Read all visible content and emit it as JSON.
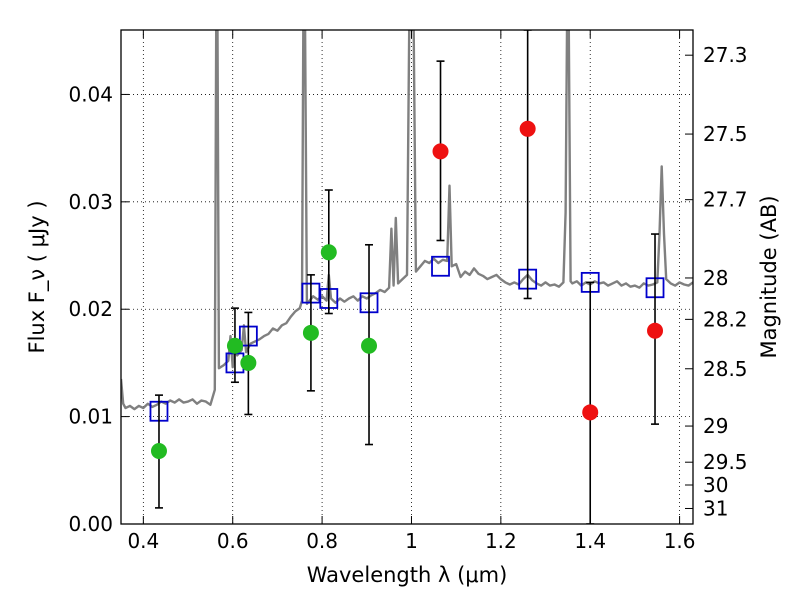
{
  "chart_data": {
    "type": "scatter",
    "xlabel": "Wavelength  λ (μm)",
    "ylabel": "Flux  F_ν  ( μJy )",
    "ylabel_right": "Magnitude (AB)",
    "xlim": [
      0.35,
      1.63
    ],
    "ylim": [
      0.0,
      0.046
    ],
    "grid": true,
    "x_ticks": [
      0.4,
      0.6,
      0.8,
      1.0,
      1.2,
      1.4,
      1.6
    ],
    "x_tick_labels": [
      "0.4",
      "0.6",
      "0.8",
      "1",
      "1.2",
      "1.4",
      "1.6"
    ],
    "y_ticks": [
      0.0,
      0.01,
      0.02,
      0.03,
      0.04
    ],
    "y_tick_labels": [
      "0.00",
      "0.01",
      "0.02",
      "0.03",
      "0.04"
    ],
    "right_ticks": [
      {
        "mag": 27.3,
        "label": "27.3"
      },
      {
        "mag": 27.5,
        "label": "27.5"
      },
      {
        "mag": 27.7,
        "label": "27.7"
      },
      {
        "mag": 28.0,
        "label": "28"
      },
      {
        "mag": 28.2,
        "label": "28.2"
      },
      {
        "mag": 28.5,
        "label": "28.5"
      },
      {
        "mag": 29.0,
        "label": "29"
      },
      {
        "mag": 29.5,
        "label": "29.5"
      },
      {
        "mag": 30.0,
        "label": "30"
      },
      {
        "mag": 31.0,
        "label": "31"
      }
    ],
    "series": [
      {
        "kind": "template_spectrum",
        "color": "#808080",
        "points": [
          [
            0.35,
            0.0135
          ],
          [
            0.355,
            0.0112
          ],
          [
            0.36,
            0.0108
          ],
          [
            0.37,
            0.011
          ],
          [
            0.38,
            0.0107
          ],
          [
            0.39,
            0.011
          ],
          [
            0.4,
            0.0108
          ],
          [
            0.41,
            0.0112
          ],
          [
            0.42,
            0.0109
          ],
          [
            0.43,
            0.0111
          ],
          [
            0.44,
            0.0114
          ],
          [
            0.45,
            0.0112
          ],
          [
            0.46,
            0.0115
          ],
          [
            0.47,
            0.0113
          ],
          [
            0.48,
            0.0116
          ],
          [
            0.49,
            0.0113
          ],
          [
            0.5,
            0.0114
          ],
          [
            0.51,
            0.0116
          ],
          [
            0.52,
            0.0112
          ],
          [
            0.53,
            0.0115
          ],
          [
            0.54,
            0.0114
          ],
          [
            0.55,
            0.0111
          ],
          [
            0.555,
            0.0118
          ],
          [
            0.56,
            0.0125
          ],
          [
            0.563,
            0.046
          ],
          [
            0.566,
            0.046
          ],
          [
            0.569,
            0.0145
          ],
          [
            0.58,
            0.0148
          ],
          [
            0.59,
            0.0152
          ],
          [
            0.595,
            0.0175
          ],
          [
            0.6,
            0.0146
          ],
          [
            0.605,
            0.0165
          ],
          [
            0.61,
            0.0157
          ],
          [
            0.62,
            0.0162
          ],
          [
            0.625,
            0.0185
          ],
          [
            0.63,
            0.016
          ],
          [
            0.64,
            0.0168
          ],
          [
            0.65,
            0.017
          ],
          [
            0.66,
            0.0172
          ],
          [
            0.67,
            0.0175
          ],
          [
            0.68,
            0.0177
          ],
          [
            0.69,
            0.0182
          ],
          [
            0.7,
            0.018
          ],
          [
            0.71,
            0.0185
          ],
          [
            0.72,
            0.0187
          ],
          [
            0.73,
            0.0193
          ],
          [
            0.74,
            0.0198
          ],
          [
            0.75,
            0.0201
          ],
          [
            0.755,
            0.0208
          ],
          [
            0.758,
            0.046
          ],
          [
            0.762,
            0.046
          ],
          [
            0.766,
            0.0205
          ],
          [
            0.77,
            0.0207
          ],
          [
            0.78,
            0.0212
          ],
          [
            0.79,
            0.0209
          ],
          [
            0.8,
            0.0212
          ],
          [
            0.81,
            0.0208
          ],
          [
            0.815,
            0.0232
          ],
          [
            0.82,
            0.021
          ],
          [
            0.83,
            0.0206
          ],
          [
            0.84,
            0.021
          ],
          [
            0.85,
            0.0207
          ],
          [
            0.86,
            0.021
          ],
          [
            0.87,
            0.0212
          ],
          [
            0.88,
            0.0208
          ],
          [
            0.89,
            0.0212
          ],
          [
            0.9,
            0.021
          ],
          [
            0.91,
            0.0213
          ],
          [
            0.92,
            0.0215
          ],
          [
            0.93,
            0.0218
          ],
          [
            0.94,
            0.0216
          ],
          [
            0.95,
            0.022
          ],
          [
            0.955,
            0.0275
          ],
          [
            0.96,
            0.0222
          ],
          [
            0.965,
            0.0285
          ],
          [
            0.97,
            0.0224
          ],
          [
            0.98,
            0.0228
          ],
          [
            0.99,
            0.0232
          ],
          [
            0.995,
            0.046
          ],
          [
            1.0,
            0.046
          ],
          [
            1.005,
            0.046
          ],
          [
            1.01,
            0.0235
          ],
          [
            1.02,
            0.024
          ],
          [
            1.03,
            0.0245
          ],
          [
            1.04,
            0.0243
          ],
          [
            1.05,
            0.0247
          ],
          [
            1.06,
            0.0243
          ],
          [
            1.07,
            0.0246
          ],
          [
            1.08,
            0.0245
          ],
          [
            1.085,
            0.0315
          ],
          [
            1.09,
            0.024
          ],
          [
            1.1,
            0.0242
          ],
          [
            1.11,
            0.023
          ],
          [
            1.12,
            0.0235
          ],
          [
            1.13,
            0.0232
          ],
          [
            1.14,
            0.0238
          ],
          [
            1.15,
            0.0233
          ],
          [
            1.16,
            0.0231
          ],
          [
            1.17,
            0.0228
          ],
          [
            1.18,
            0.023
          ],
          [
            1.19,
            0.0232
          ],
          [
            1.2,
            0.0228
          ],
          [
            1.21,
            0.0225
          ],
          [
            1.22,
            0.0223
          ],
          [
            1.23,
            0.0225
          ],
          [
            1.24,
            0.0223
          ],
          [
            1.25,
            0.0228
          ],
          [
            1.26,
            0.0232
          ],
          [
            1.27,
            0.0227
          ],
          [
            1.28,
            0.0224
          ],
          [
            1.29,
            0.0222
          ],
          [
            1.3,
            0.0225
          ],
          [
            1.31,
            0.0222
          ],
          [
            1.32,
            0.0223
          ],
          [
            1.33,
            0.0221
          ],
          [
            1.34,
            0.0225
          ],
          [
            1.345,
            0.029
          ],
          [
            1.348,
            0.046
          ],
          [
            1.352,
            0.046
          ],
          [
            1.356,
            0.0226
          ],
          [
            1.36,
            0.0224
          ],
          [
            1.37,
            0.0226
          ],
          [
            1.38,
            0.0222
          ],
          [
            1.39,
            0.0225
          ],
          [
            1.4,
            0.0223
          ],
          [
            1.41,
            0.0226
          ],
          [
            1.42,
            0.0224
          ],
          [
            1.43,
            0.0225
          ],
          [
            1.44,
            0.0222
          ],
          [
            1.45,
            0.0224
          ],
          [
            1.46,
            0.0226
          ],
          [
            1.47,
            0.0222
          ],
          [
            1.48,
            0.0224
          ],
          [
            1.49,
            0.0221
          ],
          [
            1.5,
            0.0222
          ],
          [
            1.51,
            0.022
          ],
          [
            1.52,
            0.0224
          ],
          [
            1.53,
            0.0222
          ],
          [
            1.54,
            0.0223
          ],
          [
            1.55,
            0.0225
          ],
          [
            1.555,
            0.027
          ],
          [
            1.56,
            0.0333
          ],
          [
            1.565,
            0.027
          ],
          [
            1.57,
            0.0228
          ],
          [
            1.58,
            0.0224
          ],
          [
            1.59,
            0.0222
          ],
          [
            1.6,
            0.0225
          ],
          [
            1.61,
            0.0223
          ],
          [
            1.62,
            0.0222
          ],
          [
            1.63,
            0.0225
          ]
        ]
      },
      {
        "kind": "model_photometry",
        "marker": "open-square",
        "color": "#0000cc",
        "points": [
          [
            0.435,
            0.0105
          ],
          [
            0.605,
            0.015
          ],
          [
            0.635,
            0.0175
          ],
          [
            0.775,
            0.0215
          ],
          [
            0.815,
            0.021
          ],
          [
            0.905,
            0.0206
          ],
          [
            1.065,
            0.024
          ],
          [
            1.26,
            0.0228
          ],
          [
            1.4,
            0.0225
          ],
          [
            1.545,
            0.022
          ]
        ]
      },
      {
        "kind": "observed_optical",
        "marker": "filled-circle",
        "color": "#22bb22",
        "points": [
          {
            "x": 0.435,
            "y": 0.0068,
            "err": [
              0.0015,
              0.012
            ]
          },
          {
            "x": 0.605,
            "y": 0.0166,
            "err": [
              0.0132,
              0.0201
            ]
          },
          {
            "x": 0.635,
            "y": 0.015,
            "err": [
              0.0102,
              0.0197
            ]
          },
          {
            "x": 0.775,
            "y": 0.0178,
            "err": [
              0.0124,
              0.0232
            ]
          },
          {
            "x": 0.815,
            "y": 0.0253,
            "err": [
              0.0196,
              0.0311
            ]
          },
          {
            "x": 0.905,
            "y": 0.0166,
            "err": [
              0.0074,
              0.026
            ]
          }
        ]
      },
      {
        "kind": "observed_infrared",
        "marker": "filled-circle",
        "color": "#ee1111",
        "points": [
          {
            "x": 1.065,
            "y": 0.0347,
            "err": [
              0.0264,
              0.0431
            ]
          },
          {
            "x": 1.26,
            "y": 0.0368,
            "err": [
              0.021,
              0.046
            ]
          },
          {
            "x": 1.4,
            "y": 0.0104,
            "err": [
              0.0,
              0.0225
            ]
          },
          {
            "x": 1.545,
            "y": 0.018,
            "err": [
              0.0093,
              0.027
            ]
          }
        ]
      }
    ]
  }
}
